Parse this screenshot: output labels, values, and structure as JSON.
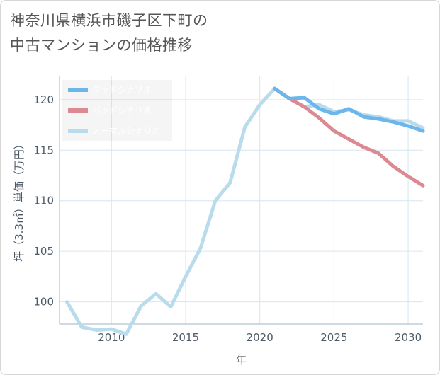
{
  "title": {
    "line1": "神奈川県横浜市磯子区下町の",
    "line2": "中古マンションの価格推移"
  },
  "chart_data": {
    "type": "line",
    "xlabel": "年",
    "ylabel": "坪（3.3㎡）単価（万円）",
    "xlim": [
      2006.5,
      2031
    ],
    "ylim": [
      97.8,
      122.3
    ],
    "x_ticks": [
      2010,
      2015,
      2020,
      2025,
      2030
    ],
    "y_ticks": [
      100,
      105,
      110,
      115,
      120
    ],
    "grid": true,
    "legend_position": "top-left",
    "series": [
      {
        "name": "グッドシナリオ",
        "color": "#6cb6ec",
        "x": [
          2021,
          2022,
          2023,
          2024,
          2025,
          2026,
          2027,
          2028,
          2029,
          2030,
          2031
        ],
        "values": [
          121.1,
          120.1,
          120.2,
          119.1,
          118.6,
          119.1,
          118.3,
          118.1,
          117.8,
          117.4,
          116.9
        ]
      },
      {
        "name": "バッドシナリオ",
        "color": "#dc8a92",
        "x": [
          2021,
          2022,
          2023,
          2024,
          2025,
          2026,
          2027,
          2028,
          2029,
          2030,
          2031
        ],
        "values": [
          121.1,
          120.1,
          119.3,
          118.2,
          116.9,
          116.1,
          115.3,
          114.7,
          113.4,
          112.4,
          111.5
        ]
      },
      {
        "name": "ノーマルシナリオ",
        "color": "#b9dcec",
        "x": [
          2007,
          2008,
          2009,
          2010,
          2011,
          2012,
          2013,
          2014,
          2015,
          2016,
          2017,
          2018,
          2019,
          2020,
          2021,
          2022,
          2023,
          2024,
          2025,
          2026,
          2027,
          2028,
          2029,
          2030,
          2031
        ],
        "values": [
          100.0,
          97.5,
          97.2,
          97.3,
          96.8,
          99.6,
          100.8,
          99.5,
          102.5,
          105.3,
          110.0,
          111.8,
          117.3,
          119.5,
          121.1,
          120.1,
          119.3,
          119.5,
          118.8,
          119.0,
          118.5,
          118.3,
          117.9,
          117.9,
          117.2
        ]
      }
    ]
  }
}
